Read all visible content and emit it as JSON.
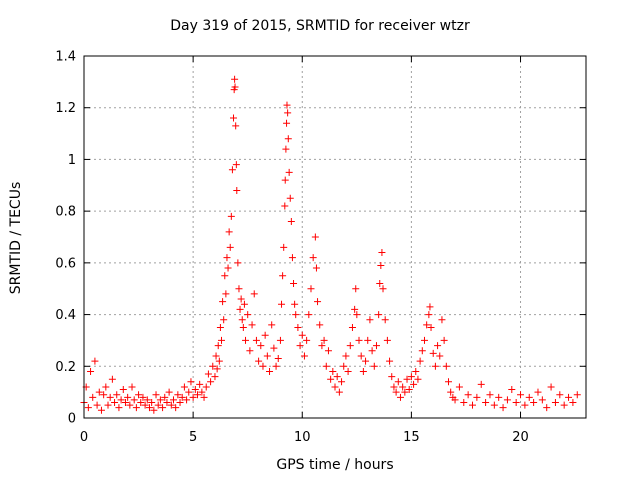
{
  "chart_data": {
    "type": "scatter",
    "title": "Day 319 of 2015, SRMTID for receiver wtzr",
    "xlabel": "GPS time / hours",
    "ylabel": "SRMTID / TECUs",
    "xlim": [
      0,
      23
    ],
    "ylim": [
      0,
      1.4
    ],
    "x_ticks": [
      0,
      5,
      10,
      15,
      20
    ],
    "x_tick_labels": [
      "0",
      "5",
      "10",
      "15",
      "20"
    ],
    "y_ticks": [
      0,
      0.2,
      0.4,
      0.6,
      0.8,
      1.0,
      1.2,
      1.4
    ],
    "y_tick_labels": [
      "0",
      "0.2",
      "0.4",
      "0.6",
      "0.8",
      "1",
      "1.2",
      "1.4"
    ],
    "grid": true,
    "marker": "+",
    "color": "#ff0000",
    "series": [
      {
        "name": "SRMTID",
        "points": [
          [
            0.0,
            0.06
          ],
          [
            0.1,
            0.12
          ],
          [
            0.2,
            0.04
          ],
          [
            0.3,
            0.18
          ],
          [
            0.4,
            0.08
          ],
          [
            0.5,
            0.22
          ],
          [
            0.6,
            0.05
          ],
          [
            0.7,
            0.1
          ],
          [
            0.8,
            0.03
          ],
          [
            0.9,
            0.09
          ],
          [
            1.0,
            0.12
          ],
          [
            1.1,
            0.05
          ],
          [
            1.2,
            0.08
          ],
          [
            1.3,
            0.15
          ],
          [
            1.4,
            0.06
          ],
          [
            1.5,
            0.09
          ],
          [
            1.6,
            0.04
          ],
          [
            1.7,
            0.07
          ],
          [
            1.8,
            0.11
          ],
          [
            1.9,
            0.06
          ],
          [
            2.0,
            0.08
          ],
          [
            2.1,
            0.05
          ],
          [
            2.2,
            0.12
          ],
          [
            2.3,
            0.07
          ],
          [
            2.4,
            0.04
          ],
          [
            2.5,
            0.09
          ],
          [
            2.6,
            0.06
          ],
          [
            2.7,
            0.08
          ],
          [
            2.8,
            0.05
          ],
          [
            2.9,
            0.07
          ],
          [
            3.0,
            0.04
          ],
          [
            3.1,
            0.06
          ],
          [
            3.2,
            0.03
          ],
          [
            3.3,
            0.09
          ],
          [
            3.4,
            0.05
          ],
          [
            3.5,
            0.07
          ],
          [
            3.6,
            0.04
          ],
          [
            3.7,
            0.08
          ],
          [
            3.8,
            0.06
          ],
          [
            3.9,
            0.1
          ],
          [
            4.0,
            0.05
          ],
          [
            4.1,
            0.07
          ],
          [
            4.2,
            0.04
          ],
          [
            4.3,
            0.09
          ],
          [
            4.4,
            0.06
          ],
          [
            4.5,
            0.08
          ],
          [
            4.6,
            0.12
          ],
          [
            4.7,
            0.07
          ],
          [
            4.8,
            0.1
          ],
          [
            4.9,
            0.14
          ],
          [
            5.0,
            0.08
          ],
          [
            5.1,
            0.11
          ],
          [
            5.2,
            0.09
          ],
          [
            5.3,
            0.13
          ],
          [
            5.4,
            0.1
          ],
          [
            5.5,
            0.08
          ],
          [
            5.6,
            0.12
          ],
          [
            5.7,
            0.17
          ],
          [
            5.8,
            0.14
          ],
          [
            5.9,
            0.2
          ],
          [
            6.0,
            0.16
          ],
          [
            6.05,
            0.24
          ],
          [
            6.1,
            0.19
          ],
          [
            6.15,
            0.28
          ],
          [
            6.2,
            0.22
          ],
          [
            6.25,
            0.35
          ],
          [
            6.3,
            0.3
          ],
          [
            6.35,
            0.45
          ],
          [
            6.4,
            0.38
          ],
          [
            6.45,
            0.55
          ],
          [
            6.5,
            0.48
          ],
          [
            6.55,
            0.62
          ],
          [
            6.6,
            0.58
          ],
          [
            6.65,
            0.72
          ],
          [
            6.7,
            0.66
          ],
          [
            6.75,
            0.78
          ],
          [
            6.8,
            0.96
          ],
          [
            6.85,
            1.16
          ],
          [
            6.88,
            1.27
          ],
          [
            6.9,
            1.31
          ],
          [
            6.92,
            1.28
          ],
          [
            6.95,
            1.13
          ],
          [
            6.98,
            0.98
          ],
          [
            7.0,
            0.88
          ],
          [
            7.05,
            0.6
          ],
          [
            7.1,
            0.5
          ],
          [
            7.15,
            0.42
          ],
          [
            7.2,
            0.46
          ],
          [
            7.25,
            0.38
          ],
          [
            7.3,
            0.35
          ],
          [
            7.35,
            0.44
          ],
          [
            7.4,
            0.3
          ],
          [
            7.5,
            0.4
          ],
          [
            7.6,
            0.26
          ],
          [
            7.7,
            0.36
          ],
          [
            7.8,
            0.48
          ],
          [
            7.9,
            0.3
          ],
          [
            8.0,
            0.22
          ],
          [
            8.1,
            0.28
          ],
          [
            8.2,
            0.2
          ],
          [
            8.3,
            0.32
          ],
          [
            8.4,
            0.24
          ],
          [
            8.5,
            0.18
          ],
          [
            8.6,
            0.36
          ],
          [
            8.7,
            0.27
          ],
          [
            8.8,
            0.2
          ],
          [
            8.9,
            0.23
          ],
          [
            9.0,
            0.3
          ],
          [
            9.05,
            0.44
          ],
          [
            9.1,
            0.55
          ],
          [
            9.15,
            0.66
          ],
          [
            9.2,
            0.82
          ],
          [
            9.22,
            0.92
          ],
          [
            9.25,
            1.04
          ],
          [
            9.28,
            1.14
          ],
          [
            9.3,
            1.21
          ],
          [
            9.33,
            1.18
          ],
          [
            9.36,
            1.08
          ],
          [
            9.4,
            0.95
          ],
          [
            9.45,
            0.85
          ],
          [
            9.5,
            0.76
          ],
          [
            9.55,
            0.62
          ],
          [
            9.6,
            0.52
          ],
          [
            9.65,
            0.44
          ],
          [
            9.7,
            0.4
          ],
          [
            9.8,
            0.35
          ],
          [
            9.9,
            0.28
          ],
          [
            10.0,
            0.32
          ],
          [
            10.1,
            0.24
          ],
          [
            10.2,
            0.3
          ],
          [
            10.3,
            0.4
          ],
          [
            10.4,
            0.5
          ],
          [
            10.5,
            0.62
          ],
          [
            10.6,
            0.7
          ],
          [
            10.65,
            0.58
          ],
          [
            10.7,
            0.45
          ],
          [
            10.8,
            0.36
          ],
          [
            10.9,
            0.28
          ],
          [
            11.0,
            0.3
          ],
          [
            11.1,
            0.2
          ],
          [
            11.2,
            0.26
          ],
          [
            11.3,
            0.15
          ],
          [
            11.4,
            0.18
          ],
          [
            11.5,
            0.12
          ],
          [
            11.6,
            0.16
          ],
          [
            11.7,
            0.1
          ],
          [
            11.8,
            0.14
          ],
          [
            11.9,
            0.2
          ],
          [
            12.0,
            0.24
          ],
          [
            12.1,
            0.18
          ],
          [
            12.2,
            0.28
          ],
          [
            12.3,
            0.35
          ],
          [
            12.4,
            0.42
          ],
          [
            12.45,
            0.5
          ],
          [
            12.5,
            0.4
          ],
          [
            12.6,
            0.3
          ],
          [
            12.7,
            0.24
          ],
          [
            12.8,
            0.18
          ],
          [
            12.9,
            0.22
          ],
          [
            13.0,
            0.3
          ],
          [
            13.1,
            0.38
          ],
          [
            13.2,
            0.26
          ],
          [
            13.3,
            0.2
          ],
          [
            13.4,
            0.28
          ],
          [
            13.5,
            0.4
          ],
          [
            13.55,
            0.52
          ],
          [
            13.6,
            0.59
          ],
          [
            13.65,
            0.64
          ],
          [
            13.7,
            0.5
          ],
          [
            13.8,
            0.38
          ],
          [
            13.9,
            0.3
          ],
          [
            14.0,
            0.22
          ],
          [
            14.1,
            0.16
          ],
          [
            14.2,
            0.12
          ],
          [
            14.3,
            0.1
          ],
          [
            14.4,
            0.14
          ],
          [
            14.5,
            0.08
          ],
          [
            14.6,
            0.12
          ],
          [
            14.7,
            0.1
          ],
          [
            14.8,
            0.15
          ],
          [
            14.9,
            0.11
          ],
          [
            15.0,
            0.16
          ],
          [
            15.1,
            0.13
          ],
          [
            15.2,
            0.18
          ],
          [
            15.3,
            0.15
          ],
          [
            15.4,
            0.22
          ],
          [
            15.5,
            0.26
          ],
          [
            15.6,
            0.3
          ],
          [
            15.7,
            0.36
          ],
          [
            15.8,
            0.4
          ],
          [
            15.85,
            0.43
          ],
          [
            15.9,
            0.35
          ],
          [
            16.0,
            0.25
          ],
          [
            16.1,
            0.2
          ],
          [
            16.2,
            0.28
          ],
          [
            16.3,
            0.24
          ],
          [
            16.4,
            0.38
          ],
          [
            16.5,
            0.3
          ],
          [
            16.6,
            0.2
          ],
          [
            16.7,
            0.14
          ],
          [
            16.8,
            0.1
          ],
          [
            16.9,
            0.08
          ],
          [
            17.0,
            0.07
          ],
          [
            17.2,
            0.12
          ],
          [
            17.4,
            0.06
          ],
          [
            17.6,
            0.09
          ],
          [
            17.8,
            0.05
          ],
          [
            18.0,
            0.08
          ],
          [
            18.2,
            0.13
          ],
          [
            18.4,
            0.06
          ],
          [
            18.6,
            0.09
          ],
          [
            18.8,
            0.05
          ],
          [
            19.0,
            0.08
          ],
          [
            19.2,
            0.04
          ],
          [
            19.4,
            0.07
          ],
          [
            19.6,
            0.11
          ],
          [
            19.8,
            0.06
          ],
          [
            20.0,
            0.09
          ],
          [
            20.2,
            0.05
          ],
          [
            20.4,
            0.08
          ],
          [
            20.6,
            0.06
          ],
          [
            20.8,
            0.1
          ],
          [
            21.0,
            0.07
          ],
          [
            21.2,
            0.04
          ],
          [
            21.4,
            0.12
          ],
          [
            21.6,
            0.06
          ],
          [
            21.8,
            0.09
          ],
          [
            22.0,
            0.05
          ],
          [
            22.2,
            0.08
          ],
          [
            22.4,
            0.06
          ],
          [
            22.6,
            0.09
          ]
        ]
      }
    ]
  }
}
